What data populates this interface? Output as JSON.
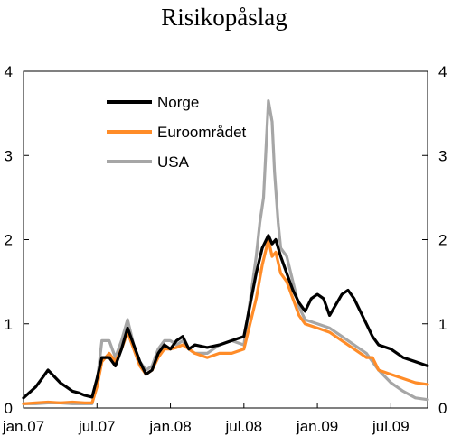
{
  "chart_data": {
    "type": "line",
    "title": "Risikopåslag",
    "xlabel": "",
    "ylabel": "",
    "x_tick_labels": [
      "jan.07",
      "jul.07",
      "jan.08",
      "jul.08",
      "jan.09",
      "jul.09"
    ],
    "y_ticks": [
      0,
      1,
      2,
      3,
      4
    ],
    "ylim": [
      0,
      4
    ],
    "x_range_months": [
      0,
      33
    ],
    "grid": false,
    "legend_position": "top-left",
    "series": [
      {
        "name": "Norge",
        "color": "#000000",
        "x": [
          0,
          1,
          1.5,
          2,
          3,
          3.5,
          4,
          4.5,
          5,
          5.6,
          6,
          6.4,
          7,
          7.5,
          8,
          8.5,
          9,
          9.5,
          10,
          10.5,
          11,
          11.5,
          12,
          12.5,
          13,
          13.5,
          14,
          15,
          16,
          17,
          18,
          19,
          19.5,
          20,
          20.3,
          20.6,
          21,
          21.5,
          22,
          22.5,
          23,
          23.5,
          24,
          24.5,
          25,
          26,
          26.5,
          27,
          28,
          28.5,
          29,
          30,
          31,
          32,
          33
        ],
        "y": [
          0.12,
          0.25,
          0.35,
          0.45,
          0.3,
          0.25,
          0.2,
          0.18,
          0.15,
          0.13,
          0.35,
          0.6,
          0.6,
          0.5,
          0.7,
          0.95,
          0.75,
          0.55,
          0.4,
          0.45,
          0.65,
          0.75,
          0.7,
          0.8,
          0.85,
          0.7,
          0.75,
          0.72,
          0.75,
          0.8,
          0.85,
          1.6,
          1.9,
          2.05,
          1.95,
          2.0,
          1.8,
          1.6,
          1.4,
          1.25,
          1.15,
          1.3,
          1.35,
          1.3,
          1.1,
          1.35,
          1.4,
          1.3,
          1.0,
          0.85,
          0.75,
          0.7,
          0.6,
          0.55,
          0.5
        ]
      },
      {
        "name": "Euroområdet",
        "color": "#ff8c28",
        "x": [
          0,
          1,
          2,
          3,
          4,
          5,
          5.6,
          6,
          6.4,
          7,
          7.5,
          8,
          8.5,
          9,
          9.5,
          10,
          10.5,
          11,
          11.5,
          12,
          12.5,
          13,
          13.5,
          14,
          15,
          16,
          17,
          18,
          19,
          19.5,
          20,
          20.3,
          20.6,
          21,
          21.5,
          22,
          22.5,
          23,
          24,
          25,
          26,
          27,
          28,
          28.5,
          29,
          30,
          31,
          32,
          33
        ],
        "y": [
          0.05,
          0.06,
          0.07,
          0.06,
          0.07,
          0.06,
          0.06,
          0.25,
          0.55,
          0.65,
          0.55,
          0.7,
          0.9,
          0.7,
          0.5,
          0.4,
          0.45,
          0.6,
          0.7,
          0.7,
          0.72,
          0.75,
          0.7,
          0.65,
          0.6,
          0.65,
          0.65,
          0.7,
          1.3,
          1.7,
          2.0,
          1.8,
          1.85,
          1.6,
          1.5,
          1.3,
          1.1,
          1.0,
          0.95,
          0.9,
          0.8,
          0.7,
          0.6,
          0.6,
          0.45,
          0.4,
          0.35,
          0.3,
          0.28
        ]
      },
      {
        "name": "USA",
        "color": "#a6a6a6",
        "x": [
          0,
          1,
          2,
          3,
          4,
          5,
          5.6,
          6,
          6.4,
          7,
          7.5,
          8,
          8.5,
          9,
          9.5,
          10,
          10.5,
          11,
          11.5,
          12,
          12.5,
          13,
          13.5,
          14,
          15,
          16,
          17,
          18,
          19,
          19.3,
          19.6,
          20,
          20.3,
          20.5,
          20.8,
          21,
          21.5,
          22,
          22.5,
          23,
          24,
          25,
          26,
          27,
          28,
          29,
          30,
          31,
          32,
          33
        ],
        "y": [
          0.05,
          0.05,
          0.06,
          0.06,
          0.05,
          0.05,
          0.05,
          0.3,
          0.8,
          0.8,
          0.6,
          0.8,
          1.05,
          0.75,
          0.55,
          0.45,
          0.5,
          0.7,
          0.8,
          0.8,
          0.75,
          0.8,
          0.7,
          0.65,
          0.65,
          0.75,
          0.8,
          0.75,
          1.8,
          2.2,
          2.5,
          3.65,
          3.4,
          2.8,
          2.2,
          1.9,
          1.8,
          1.5,
          1.2,
          1.05,
          1.0,
          0.95,
          0.85,
          0.75,
          0.65,
          0.45,
          0.3,
          0.2,
          0.12,
          0.1
        ]
      }
    ]
  }
}
